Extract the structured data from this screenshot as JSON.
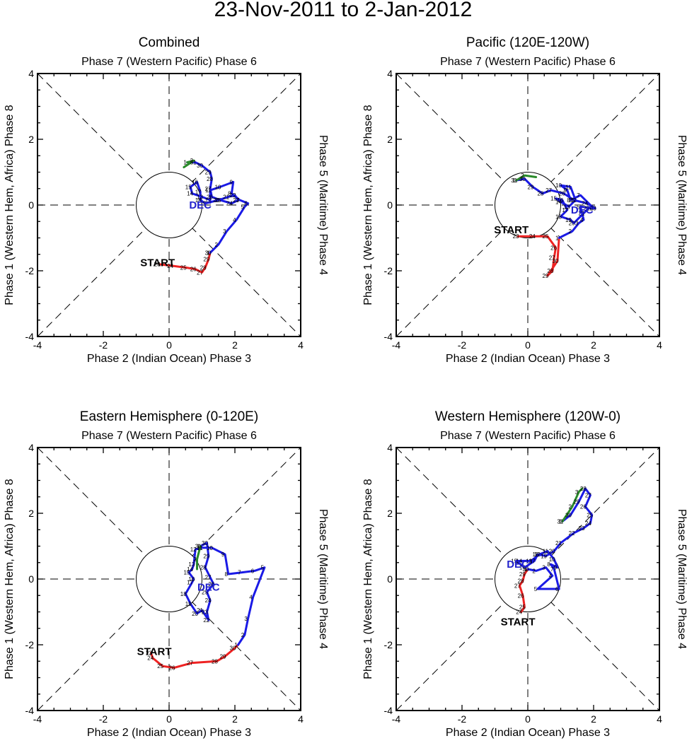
{
  "page_title": "23-Nov-2011 to 2-Jan-2012",
  "colors": {
    "nov": "#ee2222",
    "dec": "#1a1ae6",
    "jan": "#2a8a2a",
    "month_label": "#2222cc"
  },
  "chart_data": [
    {
      "type": "line",
      "title": "Combined",
      "top_label": "Phase 7 (Western Pacific) Phase 6",
      "bottom_label": "Phase 2 (Indian Ocean) Phase 3",
      "left_label": "Phase 1 (Western Hem, Africa) Phase 8",
      "right_label": "Phase 5 (Maritime) Phase 4",
      "xlim": [
        -4,
        4
      ],
      "ylim": [
        -4,
        4
      ],
      "xticks": [
        "-4",
        "-2",
        "0",
        "2",
        "4"
      ],
      "yticks": [
        "-4",
        "-2",
        "0",
        "2",
        "4"
      ],
      "start_label": "START",
      "start_point": [
        -0.35,
        -1.75
      ],
      "month_label": "DEC",
      "month_label_point": [
        0.95,
        0.0
      ],
      "series": [
        {
          "name": "nov",
          "points": [
            [
              -0.3,
              -1.8
            ],
            [
              0.1,
              -1.85
            ],
            [
              0.5,
              -1.9
            ],
            [
              0.8,
              -1.95
            ],
            [
              1.0,
              -2.05
            ],
            [
              1.1,
              -1.9
            ],
            [
              1.2,
              -1.65
            ],
            [
              1.25,
              -1.45
            ]
          ],
          "labels": [
            "23",
            "24",
            "25",
            "26",
            "27",
            "28",
            "29",
            "30"
          ]
        },
        {
          "name": "dec",
          "points": [
            [
              1.25,
              -1.45
            ],
            [
              1.5,
              -1.2
            ],
            [
              1.75,
              -0.8
            ],
            [
              2.05,
              -0.45
            ],
            [
              2.3,
              -0.05
            ],
            [
              2.4,
              0.05
            ],
            [
              2.15,
              0.15
            ],
            [
              1.9,
              0.35
            ],
            [
              1.95,
              0.7
            ],
            [
              1.55,
              0.55
            ],
            [
              1.25,
              0.45
            ],
            [
              1.25,
              0.15
            ],
            [
              1.0,
              0.25
            ],
            [
              0.7,
              0.35
            ],
            [
              0.65,
              0.55
            ],
            [
              0.85,
              0.7
            ],
            [
              0.95,
              0.4
            ],
            [
              0.95,
              0.15
            ],
            [
              1.1,
              0.05
            ],
            [
              1.5,
              0.15
            ],
            [
              1.8,
              0.25
            ],
            [
              2.0,
              0.3
            ],
            [
              2.1,
              0.15
            ],
            [
              1.9,
              0.05
            ],
            [
              1.55,
              0.15
            ],
            [
              1.3,
              0.25
            ],
            [
              1.25,
              0.5
            ],
            [
              1.3,
              0.8
            ],
            [
              1.25,
              1.0
            ],
            [
              1.0,
              1.2
            ],
            [
              0.8,
              1.3
            ],
            [
              0.55,
              1.3
            ]
          ],
          "labels": [
            "1",
            "2",
            "3",
            "4",
            "5",
            "6",
            "7",
            "8",
            "9",
            "10",
            "11",
            "12",
            "13",
            "14",
            "15",
            "16",
            "17",
            "18",
            "19",
            "20",
            "21",
            "22",
            "23",
            "24",
            "25",
            "26",
            "27",
            "28",
            "29",
            "30",
            "31"
          ]
        },
        {
          "name": "jan",
          "points": [
            [
              0.55,
              1.3
            ],
            [
              0.75,
              1.35
            ],
            [
              0.45,
              1.15
            ]
          ],
          "labels": [
            "1",
            "2"
          ]
        }
      ]
    },
    {
      "type": "line",
      "title": "Pacific (120E-120W)",
      "top_label": "Phase 7 (Western Pacific) Phase 6",
      "bottom_label": "Phase 2 (Indian Ocean) Phase 3",
      "left_label": "Phase 1 (Western Hem, Africa) Phase 8",
      "right_label": "Phase 5 (Maritime) Phase 4",
      "xlim": [
        -4,
        4
      ],
      "ylim": [
        -4,
        4
      ],
      "xticks": [
        "-4",
        "-2",
        "0",
        "2",
        "4"
      ],
      "yticks": [
        "-4",
        "-2",
        "0",
        "2",
        "4"
      ],
      "start_label": "START",
      "start_point": [
        -0.5,
        -0.75
      ],
      "month_label": "DEC",
      "month_label_point": [
        1.65,
        -0.15
      ],
      "series": [
        {
          "name": "nov",
          "points": [
            [
              -0.3,
              -0.95
            ],
            [
              0.2,
              -0.95
            ],
            [
              0.6,
              -0.95
            ],
            [
              0.85,
              -1.3
            ],
            [
              0.8,
              -1.6
            ],
            [
              0.75,
              -2.0
            ],
            [
              0.6,
              -2.15
            ],
            [
              0.9,
              -1.7
            ],
            [
              0.95,
              -1.0
            ]
          ],
          "labels": [
            "23",
            "24",
            "25",
            "26",
            "27",
            "28",
            "29",
            "30"
          ]
        },
        {
          "name": "dec",
          "points": [
            [
              0.95,
              -1.0
            ],
            [
              1.35,
              -0.8
            ],
            [
              1.55,
              -0.55
            ],
            [
              1.7,
              -0.45
            ],
            [
              1.6,
              -0.05
            ],
            [
              2.0,
              -0.1
            ],
            [
              1.6,
              0.3
            ],
            [
              1.3,
              0.15
            ],
            [
              1.2,
              0.45
            ],
            [
              1.0,
              0.6
            ],
            [
              1.3,
              0.55
            ],
            [
              1.45,
              0.15
            ],
            [
              1.25,
              -0.05
            ],
            [
              1.0,
              0.1
            ],
            [
              0.85,
              0.2
            ],
            [
              1.05,
              0.15
            ],
            [
              1.2,
              -0.15
            ],
            [
              1.0,
              -0.35
            ],
            [
              1.3,
              -0.45
            ],
            [
              1.4,
              -0.55
            ],
            [
              1.7,
              -0.25
            ],
            [
              1.85,
              -0.1
            ],
            [
              2.05,
              -0.1
            ],
            [
              1.8,
              0.05
            ],
            [
              1.4,
              0.15
            ],
            [
              1.1,
              0.35
            ],
            [
              0.7,
              0.45
            ],
            [
              0.45,
              0.35
            ],
            [
              0.15,
              0.55
            ],
            [
              -0.1,
              0.8
            ],
            [
              -0.35,
              0.75
            ]
          ],
          "labels": [
            "1",
            "2",
            "3",
            "4",
            "5",
            "6",
            "7",
            "8",
            "9",
            "10",
            "11",
            "12",
            "13",
            "14",
            "15",
            "16",
            "17",
            "18",
            "19",
            "20",
            "21",
            "22",
            "23",
            "24",
            "25",
            "26",
            "27",
            "28",
            "29",
            "30",
            "31"
          ]
        },
        {
          "name": "jan",
          "points": [
            [
              -0.35,
              0.75
            ],
            [
              -0.1,
              0.9
            ],
            [
              0.25,
              0.85
            ]
          ],
          "labels": [
            "1",
            "2"
          ]
        }
      ]
    },
    {
      "type": "line",
      "title": "Eastern Hemisphere (0-120E)",
      "top_label": "Phase 7 (Western Pacific) Phase 6",
      "bottom_label": "Phase 2 (Indian Ocean) Phase 3",
      "left_label": "Phase 1 (Western Hem, Africa) Phase 8",
      "right_label": "Phase 5 (Maritime) Phase 4",
      "xlim": [
        -4,
        4
      ],
      "ylim": [
        -4,
        4
      ],
      "xticks": [
        "-4",
        "-2",
        "0",
        "2",
        "4"
      ],
      "yticks": [
        "-4",
        "-2",
        "0",
        "2",
        "4"
      ],
      "start_label": "START",
      "start_point": [
        -0.45,
        -2.2
      ],
      "month_label": "DEC",
      "month_label_point": [
        1.2,
        -0.25
      ],
      "series": [
        {
          "name": "nov",
          "points": [
            [
              -0.55,
              -2.25
            ],
            [
              -0.5,
              -2.4
            ],
            [
              -0.2,
              -2.65
            ],
            [
              0.15,
              -2.7
            ],
            [
              0.7,
              -2.55
            ],
            [
              1.45,
              -2.5
            ],
            [
              1.7,
              -2.35
            ],
            [
              2.0,
              -2.1
            ],
            [
              2.1,
              -2.0
            ]
          ],
          "labels": [
            "23",
            "24",
            "25",
            "26",
            "27",
            "28",
            "29",
            "30"
          ]
        },
        {
          "name": "dec",
          "points": [
            [
              2.1,
              -2.0
            ],
            [
              2.3,
              -1.7
            ],
            [
              2.4,
              -1.2
            ],
            [
              2.55,
              -0.55
            ],
            [
              2.9,
              0.35
            ],
            [
              2.6,
              0.25
            ],
            [
              2.2,
              0.2
            ],
            [
              1.8,
              0.15
            ],
            [
              1.7,
              0.75
            ],
            [
              1.3,
              0.95
            ],
            [
              1.0,
              0.95
            ],
            [
              0.8,
              0.9
            ],
            [
              0.75,
              0.45
            ],
            [
              0.7,
              0.3
            ],
            [
              0.6,
              0.2
            ],
            [
              0.75,
              0.0
            ],
            [
              0.7,
              -0.1
            ],
            [
              0.5,
              -0.45
            ],
            [
              0.65,
              -0.75
            ],
            [
              0.85,
              -1.05
            ],
            [
              1.0,
              -0.95
            ],
            [
              1.2,
              -1.25
            ],
            [
              1.15,
              -1.0
            ],
            [
              1.25,
              -0.65
            ],
            [
              1.15,
              -0.4
            ],
            [
              1.35,
              -0.15
            ],
            [
              1.25,
              0.05
            ],
            [
              1.1,
              0.35
            ],
            [
              1.2,
              0.7
            ],
            [
              1.15,
              1.1
            ],
            [
              0.95,
              1.0
            ]
          ],
          "labels": [
            "1",
            "2",
            "3",
            "4",
            "5",
            "6",
            "7",
            "8",
            "9",
            "10",
            "11",
            "12",
            "13",
            "14",
            "15",
            "16",
            "17",
            "18",
            "19",
            "20",
            "21",
            "22",
            "23",
            "24",
            "25",
            "26",
            "27",
            "28",
            "29",
            "30",
            "31"
          ]
        },
        {
          "name": "jan",
          "points": [
            [
              0.95,
              1.0
            ],
            [
              0.85,
              0.6
            ],
            [
              0.85,
              0.3
            ]
          ],
          "labels": [
            "1",
            "2"
          ]
        }
      ]
    },
    {
      "type": "line",
      "title": "Western Hemisphere (120W-0)",
      "top_label": "Phase 7 (Western Pacific) Phase 6",
      "bottom_label": "Phase 2 (Indian Ocean) Phase 3",
      "left_label": "Phase 1 (Western Hem, Africa) Phase 8",
      "right_label": "Phase 5 (Maritime) Phase 4",
      "xlim": [
        -4,
        4
      ],
      "ylim": [
        -4,
        4
      ],
      "xticks": [
        "-4",
        "-2",
        "0",
        "2",
        "4"
      ],
      "yticks": [
        "-4",
        "-2",
        "0",
        "2",
        "4"
      ],
      "start_label": "START",
      "start_point": [
        -0.3,
        -1.3
      ],
      "month_label": "DEC",
      "month_label_point": [
        -0.3,
        0.45
      ],
      "series": [
        {
          "name": "nov",
          "points": [
            [
              -0.2,
              -1.0
            ],
            [
              -0.1,
              -0.85
            ],
            [
              -0.15,
              -0.5
            ],
            [
              -0.25,
              -0.2
            ],
            [
              -0.15,
              -0.05
            ],
            [
              -0.1,
              0.15
            ],
            [
              0.0,
              0.3
            ]
          ],
          "labels": [
            "24",
            "25",
            "26",
            "27",
            "28",
            "29",
            "30"
          ]
        },
        {
          "name": "dec",
          "points": [
            [
              0.0,
              0.3
            ],
            [
              0.25,
              0.25
            ],
            [
              0.55,
              0.35
            ],
            [
              0.75,
              0.1
            ],
            [
              0.3,
              -0.3
            ],
            [
              0.95,
              -0.3
            ],
            [
              0.8,
              0.3
            ],
            [
              0.7,
              0.45
            ],
            [
              0.9,
              0.35
            ],
            [
              0.8,
              0.6
            ],
            [
              0.6,
              0.85
            ],
            [
              0.35,
              0.75
            ],
            [
              0.1,
              0.55
            ],
            [
              -0.2,
              0.55
            ],
            [
              -0.35,
              0.55
            ],
            [
              -0.1,
              0.35
            ],
            [
              0.2,
              0.55
            ],
            [
              0.3,
              0.75
            ],
            [
              0.55,
              0.7
            ],
            [
              0.8,
              0.85
            ],
            [
              1.0,
              1.1
            ],
            [
              1.4,
              1.4
            ],
            [
              1.7,
              1.55
            ],
            [
              1.9,
              1.7
            ],
            [
              1.95,
              1.95
            ],
            [
              1.75,
              2.2
            ],
            [
              1.9,
              2.55
            ],
            [
              1.75,
              2.75
            ],
            [
              1.55,
              2.35
            ],
            [
              1.3,
              1.95
            ],
            [
              1.05,
              1.75
            ]
          ],
          "labels": [
            "1",
            "2",
            "3",
            "4",
            "5",
            "6",
            "7",
            "8",
            "9",
            "10",
            "11",
            "12",
            "13",
            "14",
            "15",
            "16",
            "17",
            "18",
            "19",
            "20",
            "21",
            "22",
            "23",
            "24",
            "25",
            "26",
            "27",
            "28",
            "29",
            "30",
            "31"
          ]
        },
        {
          "name": "jan",
          "points": [
            [
              1.05,
              1.75
            ],
            [
              1.35,
              2.2
            ],
            [
              1.55,
              2.65
            ],
            [
              1.65,
              2.75
            ]
          ],
          "labels": [
            "1",
            "2",
            "3"
          ]
        }
      ]
    }
  ]
}
